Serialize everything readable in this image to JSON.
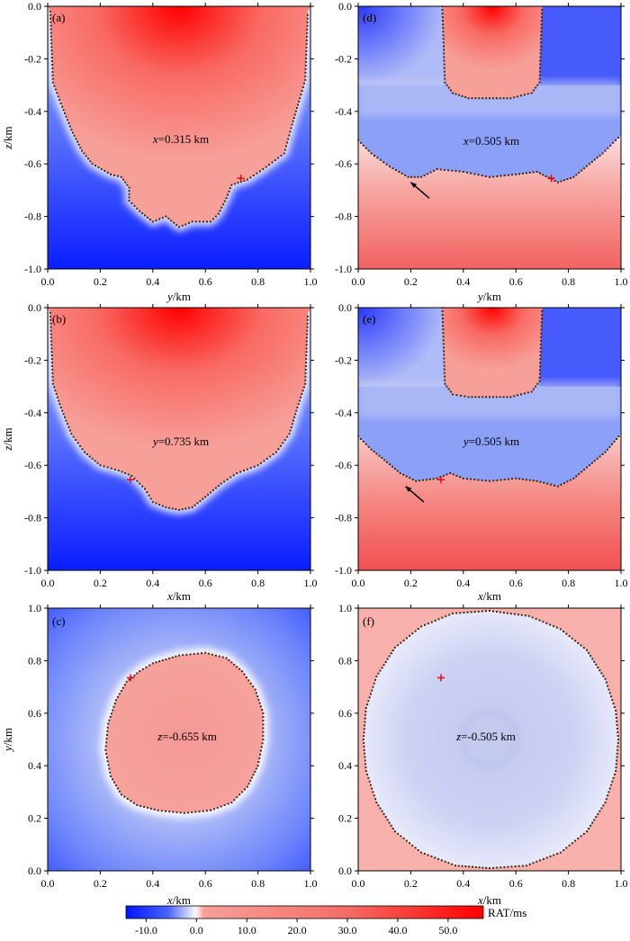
{
  "figure": {
    "colorbar": {
      "label": "RAT/ms",
      "ticks": [
        "-10.0",
        "0.0",
        "10.0",
        "20.0",
        "30.0",
        "40.0",
        "50.0"
      ],
      "tick_values": [
        -10,
        0,
        10,
        20,
        30,
        40,
        50
      ],
      "range": [
        -14,
        57
      ],
      "colors": {
        "neg": "#0a1eff",
        "zero": "#ffffff",
        "pos_low": "#f7a09a",
        "pos_high": "#ff0000"
      }
    }
  },
  "chart_data": [
    {
      "id": "a",
      "type": "heatmap",
      "panel_label": "(a)",
      "annotation_var": "x",
      "annotation_rest": "=0.315 km",
      "xlabel_var": "y",
      "xlabel_unit": "/km",
      "ylabel_var": "z",
      "ylabel_unit": "/km",
      "xlim": [
        0,
        1
      ],
      "ylim": [
        -1,
        0
      ],
      "xticks": [
        "0.0",
        "0.2",
        "0.4",
        "0.6",
        "0.8",
        "1.0"
      ],
      "yticks": [
        "0.0",
        "-0.2",
        "-0.4",
        "-0.6",
        "-0.8",
        "-1.0"
      ],
      "source_point": {
        "x": 0.735,
        "y": -0.655
      },
      "arrow": null,
      "boundary": [
        [
          0.01,
          -0.02
        ],
        [
          0.02,
          -0.29
        ],
        [
          0.05,
          -0.37
        ],
        [
          0.09,
          -0.47
        ],
        [
          0.13,
          -0.55
        ],
        [
          0.17,
          -0.6
        ],
        [
          0.24,
          -0.64
        ],
        [
          0.28,
          -0.65
        ],
        [
          0.31,
          -0.69
        ],
        [
          0.31,
          -0.74
        ],
        [
          0.35,
          -0.78
        ],
        [
          0.4,
          -0.82
        ],
        [
          0.45,
          -0.8
        ],
        [
          0.5,
          -0.84
        ],
        [
          0.55,
          -0.82
        ],
        [
          0.62,
          -0.82
        ],
        [
          0.65,
          -0.79
        ],
        [
          0.68,
          -0.73
        ],
        [
          0.7,
          -0.68
        ],
        [
          0.76,
          -0.66
        ],
        [
          0.82,
          -0.62
        ],
        [
          0.9,
          -0.56
        ],
        [
          0.93,
          -0.45
        ],
        [
          0.96,
          -0.35
        ],
        [
          0.98,
          -0.28
        ],
        [
          0.99,
          -0.02
        ]
      ]
    },
    {
      "id": "b",
      "type": "heatmap",
      "panel_label": "(b)",
      "annotation_var": "y",
      "annotation_rest": "=0.735 km",
      "xlabel_var": "x",
      "xlabel_unit": "/km",
      "ylabel_var": "z",
      "ylabel_unit": "/km",
      "xlim": [
        0,
        1
      ],
      "ylim": [
        -1,
        0
      ],
      "xticks": [
        "0.0",
        "0.2",
        "0.4",
        "0.6",
        "0.8",
        "1.0"
      ],
      "yticks": [
        "0.0",
        "-0.2",
        "-0.4",
        "-0.6",
        "-0.8",
        "-1.0"
      ],
      "source_point": {
        "x": 0.315,
        "y": -0.655
      },
      "arrow": null,
      "boundary": [
        [
          0.01,
          -0.02
        ],
        [
          0.02,
          -0.29
        ],
        [
          0.05,
          -0.38
        ],
        [
          0.09,
          -0.48
        ],
        [
          0.14,
          -0.55
        ],
        [
          0.2,
          -0.6
        ],
        [
          0.27,
          -0.62
        ],
        [
          0.32,
          -0.64
        ],
        [
          0.37,
          -0.69
        ],
        [
          0.4,
          -0.74
        ],
        [
          0.45,
          -0.76
        ],
        [
          0.5,
          -0.77
        ],
        [
          0.55,
          -0.76
        ],
        [
          0.6,
          -0.72
        ],
        [
          0.66,
          -0.67
        ],
        [
          0.72,
          -0.63
        ],
        [
          0.8,
          -0.6
        ],
        [
          0.87,
          -0.55
        ],
        [
          0.92,
          -0.48
        ],
        [
          0.95,
          -0.38
        ],
        [
          0.98,
          -0.29
        ],
        [
          0.99,
          -0.02
        ]
      ]
    },
    {
      "id": "c",
      "type": "heatmap",
      "panel_label": "(c)",
      "annotation_var": "z",
      "annotation_rest": "=-0.655 km",
      "xlabel_var": "x",
      "xlabel_unit": "/km",
      "ylabel_var": "y",
      "ylabel_unit": "/km",
      "xlim": [
        0,
        1
      ],
      "ylim": [
        0,
        1
      ],
      "xticks": [
        "0.0",
        "0.2",
        "0.4",
        "0.6",
        "0.8",
        "1.0"
      ],
      "yticks": [
        "1.0",
        "0.8",
        "0.6",
        "0.4",
        "0.2",
        "0.0"
      ],
      "source_point": {
        "x": 0.315,
        "y": 0.735
      },
      "arrow": null,
      "boundary": [
        [
          0.4,
          0.79
        ],
        [
          0.5,
          0.82
        ],
        [
          0.6,
          0.83
        ],
        [
          0.68,
          0.81
        ],
        [
          0.74,
          0.76
        ],
        [
          0.79,
          0.69
        ],
        [
          0.82,
          0.6
        ],
        [
          0.82,
          0.5
        ],
        [
          0.8,
          0.4
        ],
        [
          0.76,
          0.32
        ],
        [
          0.7,
          0.26
        ],
        [
          0.62,
          0.23
        ],
        [
          0.52,
          0.22
        ],
        [
          0.42,
          0.23
        ],
        [
          0.34,
          0.25
        ],
        [
          0.28,
          0.29
        ],
        [
          0.24,
          0.36
        ],
        [
          0.22,
          0.46
        ],
        [
          0.23,
          0.56
        ],
        [
          0.26,
          0.65
        ],
        [
          0.3,
          0.72
        ],
        [
          0.35,
          0.76
        ]
      ]
    },
    {
      "id": "d",
      "type": "heatmap",
      "panel_label": "(d)",
      "annotation_var": "x",
      "annotation_rest": "=0.505 km",
      "xlabel_var": "y",
      "xlabel_unit": "/km",
      "ylabel_var": "",
      "ylabel_unit": "",
      "xlim": [
        0,
        1
      ],
      "ylim": [
        -1,
        0
      ],
      "xticks": [
        "0.0",
        "0.2",
        "0.4",
        "0.6",
        "0.8",
        "1.0"
      ],
      "yticks": [
        "0.0",
        "-0.2",
        "-0.4",
        "-0.6",
        "-0.8",
        "-1.0"
      ],
      "source_point": {
        "x": 0.735,
        "y": -0.655
      },
      "arrow": {
        "from": [
          0.27,
          -0.73
        ],
        "to": [
          0.2,
          -0.67
        ]
      },
      "boundary_top": [
        [
          0.32,
          0.0
        ],
        [
          0.33,
          -0.29
        ],
        [
          0.36,
          -0.33
        ],
        [
          0.42,
          -0.35
        ],
        [
          0.58,
          -0.35
        ],
        [
          0.66,
          -0.33
        ],
        [
          0.69,
          -0.29
        ],
        [
          0.7,
          0.0
        ]
      ],
      "boundary_bottom": [
        [
          0.0,
          -0.51
        ],
        [
          0.05,
          -0.56
        ],
        [
          0.12,
          -0.61
        ],
        [
          0.19,
          -0.65
        ],
        [
          0.24,
          -0.65
        ],
        [
          0.3,
          -0.62
        ],
        [
          0.4,
          -0.63
        ],
        [
          0.5,
          -0.65
        ],
        [
          0.6,
          -0.64
        ],
        [
          0.68,
          -0.63
        ],
        [
          0.76,
          -0.67
        ],
        [
          0.82,
          -0.65
        ],
        [
          0.88,
          -0.6
        ],
        [
          0.93,
          -0.56
        ],
        [
          1.0,
          -0.49
        ]
      ]
    },
    {
      "id": "e",
      "type": "heatmap",
      "panel_label": "(e)",
      "annotation_var": "y",
      "annotation_rest": "=0.505 km",
      "xlabel_var": "x",
      "xlabel_unit": "/km",
      "ylabel_var": "",
      "ylabel_unit": "",
      "xlim": [
        0,
        1
      ],
      "ylim": [
        -1,
        0
      ],
      "xticks": [
        "0.0",
        "0.2",
        "0.4",
        "0.6",
        "0.8",
        "1.0"
      ],
      "yticks": [
        "0.0",
        "-0.2",
        "-0.4",
        "-0.6",
        "-0.8",
        "-1.0"
      ],
      "source_point": {
        "x": 0.315,
        "y": -0.655
      },
      "arrow": {
        "from": [
          0.25,
          -0.74
        ],
        "to": [
          0.18,
          -0.68
        ]
      },
      "boundary_top": [
        [
          0.32,
          0.0
        ],
        [
          0.33,
          -0.29
        ],
        [
          0.36,
          -0.33
        ],
        [
          0.42,
          -0.34
        ],
        [
          0.58,
          -0.34
        ],
        [
          0.66,
          -0.32
        ],
        [
          0.69,
          -0.28
        ],
        [
          0.7,
          0.0
        ]
      ],
      "boundary_bottom": [
        [
          0.0,
          -0.49
        ],
        [
          0.05,
          -0.54
        ],
        [
          0.1,
          -0.58
        ],
        [
          0.16,
          -0.63
        ],
        [
          0.22,
          -0.66
        ],
        [
          0.3,
          -0.65
        ],
        [
          0.35,
          -0.63
        ],
        [
          0.4,
          -0.65
        ],
        [
          0.5,
          -0.66
        ],
        [
          0.6,
          -0.65
        ],
        [
          0.68,
          -0.66
        ],
        [
          0.76,
          -0.68
        ],
        [
          0.82,
          -0.65
        ],
        [
          0.88,
          -0.6
        ],
        [
          0.94,
          -0.55
        ],
        [
          1.0,
          -0.48
        ]
      ]
    },
    {
      "id": "f",
      "type": "heatmap",
      "panel_label": "(f)",
      "annotation_var": "z",
      "annotation_rest": "=-0.505 km",
      "xlabel_var": "x",
      "xlabel_unit": "/km",
      "ylabel_var": "",
      "ylabel_unit": "",
      "xlim": [
        0,
        1
      ],
      "ylim": [
        0,
        1
      ],
      "xticks": [
        "0.0",
        "0.2",
        "0.4",
        "0.6",
        "0.8",
        "1.0"
      ],
      "yticks": [
        "1.0",
        "0.8",
        "0.6",
        "0.4",
        "0.2",
        "0.0"
      ],
      "source_point": {
        "x": 0.315,
        "y": 0.735
      },
      "arrow": null,
      "boundary": [
        [
          0.5,
          0.99
        ],
        [
          0.65,
          0.97
        ],
        [
          0.77,
          0.92
        ],
        [
          0.87,
          0.84
        ],
        [
          0.94,
          0.73
        ],
        [
          0.98,
          0.61
        ],
        [
          0.99,
          0.5
        ],
        [
          0.98,
          0.38
        ],
        [
          0.94,
          0.26
        ],
        [
          0.87,
          0.15
        ],
        [
          0.77,
          0.07
        ],
        [
          0.64,
          0.02
        ],
        [
          0.5,
          0.01
        ],
        [
          0.37,
          0.02
        ],
        [
          0.24,
          0.07
        ],
        [
          0.14,
          0.15
        ],
        [
          0.07,
          0.26
        ],
        [
          0.03,
          0.38
        ],
        [
          0.02,
          0.5
        ],
        [
          0.03,
          0.62
        ],
        [
          0.07,
          0.74
        ],
        [
          0.14,
          0.85
        ],
        [
          0.24,
          0.93
        ],
        [
          0.36,
          0.98
        ]
      ]
    }
  ]
}
